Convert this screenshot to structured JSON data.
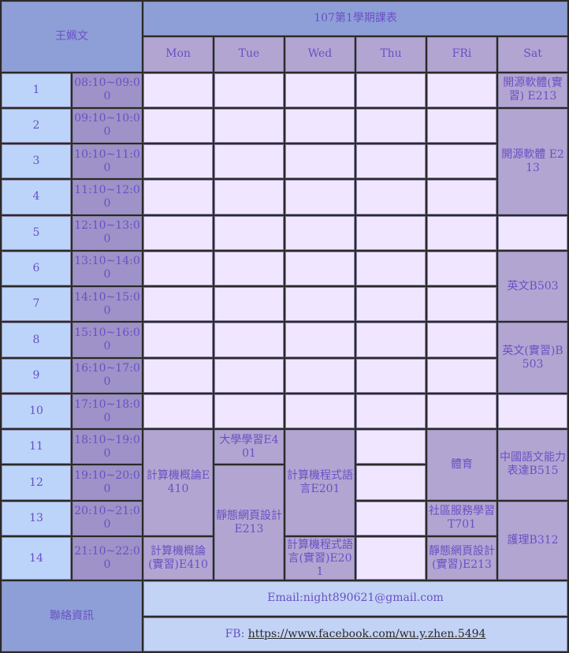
{
  "header": {
    "name": "王姵文",
    "title": "107第1學期課表",
    "days": [
      "Mon",
      "Tue",
      "Wed",
      "Thu",
      "FRi",
      "Sat"
    ]
  },
  "periods": [
    {
      "no": "1",
      "time": "08:10~09:00"
    },
    {
      "no": "2",
      "time": "09:10~10:00"
    },
    {
      "no": "3",
      "time": "10:10~11:00"
    },
    {
      "no": "4",
      "time": "11:10~12:00"
    },
    {
      "no": "5",
      "time": "12:10~13:00"
    },
    {
      "no": "6",
      "time": "13:10~14:00"
    },
    {
      "no": "7",
      "time": "14:10~15:00"
    },
    {
      "no": "8",
      "time": "15:10~16:00"
    },
    {
      "no": "9",
      "time": "16:10~17:00"
    },
    {
      "no": "10",
      "time": "17:10~18:00"
    },
    {
      "no": "11",
      "time": "18:10~19:00"
    },
    {
      "no": "12",
      "time": "19:10~20:00"
    },
    {
      "no": "13",
      "time": "20:10~21:00"
    },
    {
      "no": "14",
      "time": "21:10~22:00"
    }
  ],
  "courses": {
    "sat_p1": "開源軟體(實習) E213",
    "sat_p2_4": "開源軟體 E213",
    "sat_p6_7": "英文B503",
    "sat_p8_9": "英文(實習)B503",
    "mon_p11_13": "計算機概論E410",
    "mon_p14": "計算機概論(實習)E410",
    "tue_p11": "大學學習E401",
    "tue_p12_14": "靜態網頁設計E213",
    "wed_p11_13": "計算機程式語言E201",
    "wed_p14": "計算機程式語言(實習)E201",
    "fri_p11_12": "體育",
    "fri_p13": "社區服務學習T701",
    "fri_p14": "靜態網頁設計(實習)E213",
    "sat_p11_12": "中國語文能力表達B515",
    "sat_p13_14": "護理B312"
  },
  "contact": {
    "label": "聯絡資訊",
    "email": "Email:night890621@gmail.com",
    "fb_prefix": "FB: ",
    "fb_link": "https://www.facebook.com/wu.y.zhen.5494"
  }
}
